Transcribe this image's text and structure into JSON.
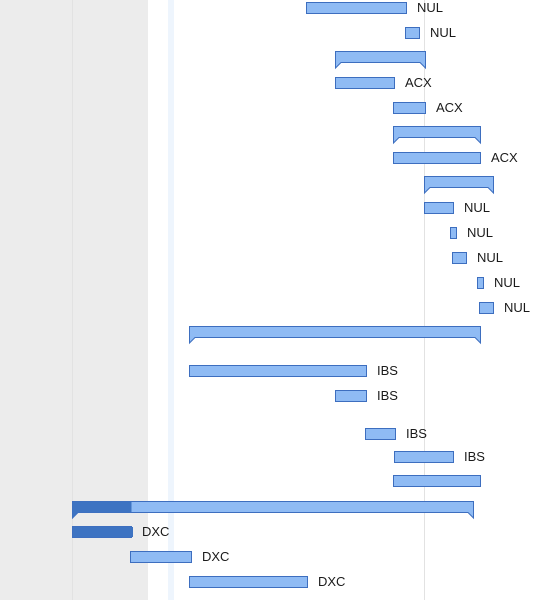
{
  "colors": {
    "bar_fill": "#8fbbf4",
    "bar_border": "#3d6ebf",
    "progress_fill": "#3d73c2",
    "nonwork_bg": "#ececec"
  },
  "tasks": [
    {
      "type": "task",
      "label": "NUL",
      "progress": 0
    },
    {
      "type": "task",
      "label": "NUL",
      "progress": 0
    },
    {
      "type": "summary",
      "label": "",
      "progress": 0
    },
    {
      "type": "task",
      "label": "ACX",
      "progress": 0
    },
    {
      "type": "task",
      "label": "ACX",
      "progress": 0
    },
    {
      "type": "summary",
      "label": "",
      "progress": 0
    },
    {
      "type": "task",
      "label": "ACX",
      "progress": 0
    },
    {
      "type": "summary",
      "label": "",
      "progress": 0
    },
    {
      "type": "task",
      "label": "NUL",
      "progress": 0
    },
    {
      "type": "task",
      "label": "NUL",
      "progress": 0
    },
    {
      "type": "task",
      "label": "NUL",
      "progress": 0
    },
    {
      "type": "task",
      "label": "NUL",
      "progress": 0
    },
    {
      "type": "task",
      "label": "NUL",
      "progress": 0
    },
    {
      "type": "summary",
      "label": "",
      "progress": 0
    },
    {
      "type": "task",
      "label": "IBS",
      "progress": 0
    },
    {
      "type": "task",
      "label": "IBS",
      "progress": 0
    },
    {
      "type": "task",
      "label": "IBS",
      "progress": 0
    },
    {
      "type": "task",
      "label": "IBS",
      "progress": 0
    },
    {
      "type": "task",
      "label": "",
      "progress": 0
    },
    {
      "type": "summary",
      "label": "",
      "progress": 0.148
    },
    {
      "type": "task",
      "label": "DXC",
      "progress": 1
    },
    {
      "type": "task",
      "label": "DXC",
      "progress": 0
    },
    {
      "type": "task",
      "label": "DXC",
      "progress": 0
    }
  ]
}
